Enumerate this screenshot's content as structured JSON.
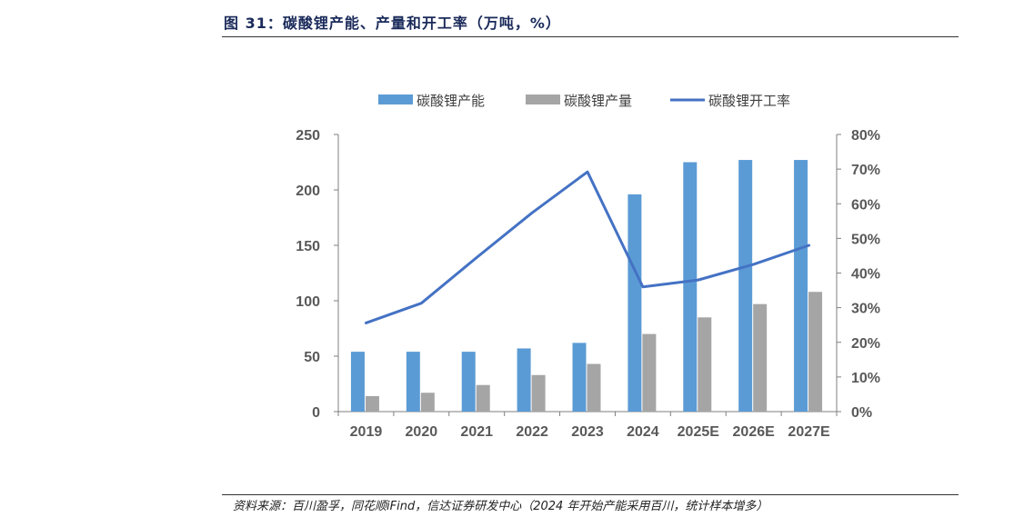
{
  "figure": {
    "title": "图 31：碳酸锂产能、产量和开工率（万吨，%）",
    "source": "资料来源：百川盈孚，同花顺iFind，信达证券研发中心（2024 年开始产能采用百川，统计样本增多）"
  },
  "chart_data": {
    "type": "bar",
    "categories": [
      "2019",
      "2020",
      "2021",
      "2022",
      "2023",
      "2024",
      "2025E",
      "2026E",
      "2027E"
    ],
    "series": [
      {
        "name": "碳酸锂产能",
        "type": "bar",
        "axis": "left",
        "color": "#5b9bd5",
        "values": [
          54,
          54,
          54,
          57,
          62,
          196,
          225,
          227,
          227
        ]
      },
      {
        "name": "碳酸锂产量",
        "type": "bar",
        "axis": "left",
        "color": "#a5a5a5",
        "values": [
          14,
          17,
          24,
          33,
          43,
          70,
          85,
          97,
          108
        ]
      },
      {
        "name": "碳酸锂开工率",
        "type": "line",
        "axis": "right",
        "color": "#4472c4",
        "values": [
          25.6,
          31.3,
          44.5,
          57.4,
          69.2,
          36,
          38,
          42.5,
          48
        ]
      }
    ],
    "y_left": {
      "min": 0,
      "max": 250,
      "ticks": [
        "0",
        "50",
        "100",
        "150",
        "200",
        "250"
      ]
    },
    "y_right": {
      "min": 0,
      "max": 80,
      "ticks": [
        "0%",
        "10%",
        "20%",
        "30%",
        "40%",
        "50%",
        "60%",
        "70%",
        "80%"
      ]
    },
    "grid": false,
    "legend_position": "top"
  }
}
